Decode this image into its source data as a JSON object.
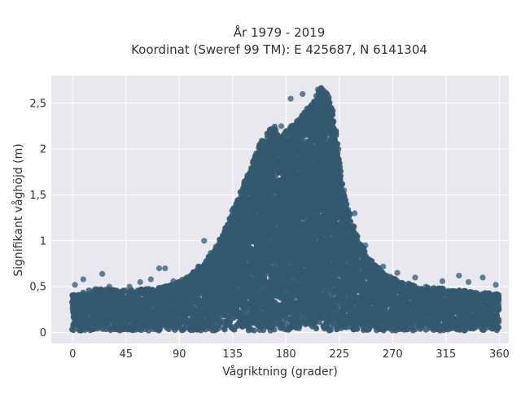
{
  "chart_data": {
    "type": "scatter",
    "title": "År 1979 - 2019",
    "subtitle": "Koordinat (Sweref 99 TM): E 425687, N 6141304",
    "xlabel": "Vågriktning (grader)",
    "ylabel": "Signifikant våghöjd (m)",
    "xlim": [
      -18,
      368
    ],
    "ylim": [
      -0.12,
      2.8
    ],
    "xticks": [
      0,
      45,
      90,
      135,
      180,
      225,
      270,
      315,
      360
    ],
    "yticks": [
      0,
      0.5,
      1,
      1.5,
      2,
      2.5
    ],
    "xtick_labels": [
      "0",
      "45",
      "90",
      "135",
      "180",
      "225",
      "270",
      "315",
      "360"
    ],
    "ytick_labels": [
      "0",
      "0,5",
      "1",
      "1,5",
      "2",
      "2,5"
    ],
    "grid": true,
    "marker_color": "#34596f",
    "background_color": "#e8e8ee",
    "envelope": {
      "direction_deg": [
        0,
        20,
        45,
        70,
        90,
        100,
        110,
        120,
        130,
        140,
        150,
        160,
        170,
        175,
        180,
        190,
        200,
        205,
        210,
        215,
        220,
        225,
        230,
        240,
        250,
        260,
        270,
        290,
        315,
        340,
        360
      ],
      "max_height_m": [
        0.42,
        0.48,
        0.46,
        0.48,
        0.56,
        0.64,
        0.76,
        0.92,
        1.18,
        1.48,
        1.82,
        2.12,
        2.26,
        2.1,
        2.2,
        2.32,
        2.48,
        2.56,
        2.68,
        2.62,
        2.4,
        1.9,
        1.45,
        1.05,
        0.82,
        0.68,
        0.6,
        0.5,
        0.48,
        0.44,
        0.42
      ],
      "min_height_m": 0.02
    },
    "outliers": [
      {
        "x": 2,
        "y": 0.52
      },
      {
        "x": 9,
        "y": 0.58
      },
      {
        "x": 25,
        "y": 0.64
      },
      {
        "x": 31,
        "y": 0.5
      },
      {
        "x": 48,
        "y": 0.5
      },
      {
        "x": 57,
        "y": 0.55
      },
      {
        "x": 66,
        "y": 0.58
      },
      {
        "x": 73,
        "y": 0.7
      },
      {
        "x": 78,
        "y": 0.7
      },
      {
        "x": 85,
        "y": 0.56
      },
      {
        "x": 106,
        "y": 0.72
      },
      {
        "x": 111,
        "y": 1.0
      },
      {
        "x": 120,
        "y": 0.9
      },
      {
        "x": 184,
        "y": 2.55
      },
      {
        "x": 194,
        "y": 2.6
      },
      {
        "x": 207,
        "y": 2.65
      },
      {
        "x": 238,
        "y": 1.3
      },
      {
        "x": 247,
        "y": 0.95
      },
      {
        "x": 262,
        "y": 0.72
      },
      {
        "x": 274,
        "y": 0.65
      },
      {
        "x": 289,
        "y": 0.6
      },
      {
        "x": 298,
        "y": 0.5
      },
      {
        "x": 309,
        "y": 0.46
      },
      {
        "x": 312,
        "y": 0.56
      },
      {
        "x": 326,
        "y": 0.62
      },
      {
        "x": 334,
        "y": 0.55
      },
      {
        "x": 346,
        "y": 0.6
      },
      {
        "x": 357,
        "y": 0.52
      },
      {
        "x": 176,
        "y": 2.25
      },
      {
        "x": 165,
        "y": 2.16
      },
      {
        "x": 152,
        "y": 1.85
      },
      {
        "x": 229,
        "y": 1.55
      }
    ]
  }
}
